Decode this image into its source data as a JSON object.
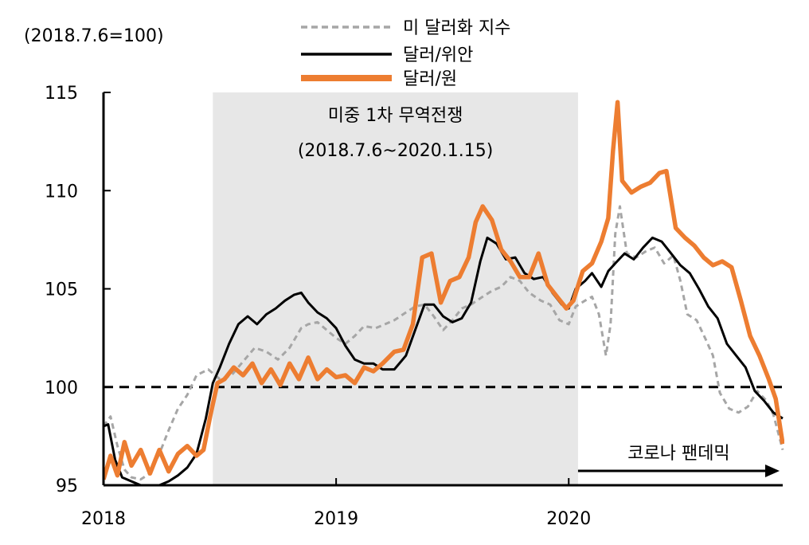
{
  "chart_data": {
    "type": "line",
    "index_note": "(2018.7.6=100)",
    "ylim": [
      95,
      115
    ],
    "yticks": [
      95,
      100,
      105,
      110,
      115
    ],
    "xlim": [
      2018.0,
      2020.92
    ],
    "xticks": [
      {
        "value": 2018.0,
        "label": "2018"
      },
      {
        "value": 2019.0,
        "label": "2019"
      },
      {
        "value": 2020.0,
        "label": "2020"
      }
    ],
    "reference_line": {
      "value": 100,
      "style": "dashed"
    },
    "shaded_region": {
      "start": 2018.47,
      "end": 2020.04,
      "label": "미중 1차 무역전쟁",
      "sublabel": "(2018.7.6~2020.1.15)"
    },
    "arrow_annotation": {
      "start": 2020.04,
      "end": 2020.92,
      "label": "코로나 팬데믹"
    },
    "legend_position": "top-center",
    "series": [
      {
        "name": "미 달러화 지수",
        "color": "#a6a6a6",
        "style": "dashed",
        "points": [
          [
            2018.0,
            98.0
          ],
          [
            2018.03,
            98.5
          ],
          [
            2018.06,
            97.0
          ],
          [
            2018.09,
            95.8
          ],
          [
            2018.12,
            95.4
          ],
          [
            2018.16,
            95.3
          ],
          [
            2018.2,
            95.6
          ],
          [
            2018.24,
            96.6
          ],
          [
            2018.28,
            97.8
          ],
          [
            2018.32,
            98.9
          ],
          [
            2018.36,
            99.6
          ],
          [
            2018.4,
            100.6
          ],
          [
            2018.45,
            100.9
          ],
          [
            2018.5,
            100.4
          ],
          [
            2018.55,
            100.6
          ],
          [
            2018.6,
            101.3
          ],
          [
            2018.65,
            102.0
          ],
          [
            2018.7,
            101.8
          ],
          [
            2018.75,
            101.4
          ],
          [
            2018.8,
            102.0
          ],
          [
            2018.85,
            103.0
          ],
          [
            2018.88,
            103.2
          ],
          [
            2018.92,
            103.3
          ],
          [
            2018.96,
            102.9
          ],
          [
            2019.0,
            102.5
          ],
          [
            2019.04,
            102.2
          ],
          [
            2019.08,
            102.6
          ],
          [
            2019.12,
            103.1
          ],
          [
            2019.17,
            103.0
          ],
          [
            2019.21,
            103.2
          ],
          [
            2019.25,
            103.4
          ],
          [
            2019.3,
            103.8
          ],
          [
            2019.34,
            104.1
          ],
          [
            2019.38,
            104.2
          ],
          [
            2019.42,
            103.6
          ],
          [
            2019.46,
            102.9
          ],
          [
            2019.5,
            103.4
          ],
          [
            2019.54,
            104.0
          ],
          [
            2019.58,
            104.2
          ],
          [
            2019.63,
            104.6
          ],
          [
            2019.67,
            104.9
          ],
          [
            2019.71,
            105.1
          ],
          [
            2019.75,
            105.6
          ],
          [
            2019.79,
            105.4
          ],
          [
            2019.83,
            104.8
          ],
          [
            2019.88,
            104.4
          ],
          [
            2019.92,
            104.2
          ],
          [
            2019.96,
            103.4
          ],
          [
            2020.0,
            103.2
          ],
          [
            2020.03,
            104.1
          ],
          [
            2020.07,
            104.4
          ],
          [
            2020.1,
            104.6
          ],
          [
            2020.13,
            103.7
          ],
          [
            2020.16,
            101.6
          ],
          [
            2020.18,
            103.2
          ],
          [
            2020.2,
            107.8
          ],
          [
            2020.22,
            109.2
          ],
          [
            2020.25,
            106.8
          ],
          [
            2020.29,
            106.6
          ],
          [
            2020.33,
            106.9
          ],
          [
            2020.37,
            107.1
          ],
          [
            2020.41,
            106.3
          ],
          [
            2020.45,
            106.7
          ],
          [
            2020.48,
            105.4
          ],
          [
            2020.51,
            103.7
          ],
          [
            2020.55,
            103.4
          ],
          [
            2020.59,
            102.4
          ],
          [
            2020.62,
            101.6
          ],
          [
            2020.65,
            99.7
          ],
          [
            2020.69,
            98.9
          ],
          [
            2020.73,
            98.7
          ],
          [
            2020.77,
            99.0
          ],
          [
            2020.81,
            99.8
          ],
          [
            2020.85,
            99.3
          ],
          [
            2020.88,
            98.6
          ],
          [
            2020.92,
            96.8
          ]
        ]
      },
      {
        "name": "달러/위안",
        "color": "#000000",
        "style": "solid",
        "points": [
          [
            2018.0,
            98.0
          ],
          [
            2018.02,
            98.1
          ],
          [
            2018.05,
            96.3
          ],
          [
            2018.08,
            95.4
          ],
          [
            2018.12,
            95.2
          ],
          [
            2018.16,
            95.0
          ],
          [
            2018.2,
            94.9
          ],
          [
            2018.24,
            95.0
          ],
          [
            2018.28,
            95.2
          ],
          [
            2018.32,
            95.5
          ],
          [
            2018.36,
            95.9
          ],
          [
            2018.4,
            96.6
          ],
          [
            2018.44,
            98.4
          ],
          [
            2018.47,
            100.2
          ],
          [
            2018.5,
            101.0
          ],
          [
            2018.54,
            102.2
          ],
          [
            2018.58,
            103.2
          ],
          [
            2018.62,
            103.6
          ],
          [
            2018.66,
            103.2
          ],
          [
            2018.7,
            103.7
          ],
          [
            2018.74,
            104.0
          ],
          [
            2018.78,
            104.4
          ],
          [
            2018.82,
            104.7
          ],
          [
            2018.85,
            104.8
          ],
          [
            2018.88,
            104.3
          ],
          [
            2018.92,
            103.8
          ],
          [
            2018.96,
            103.5
          ],
          [
            2019.0,
            103.0
          ],
          [
            2019.04,
            102.1
          ],
          [
            2019.08,
            101.4
          ],
          [
            2019.12,
            101.2
          ],
          [
            2019.16,
            101.2
          ],
          [
            2019.2,
            100.9
          ],
          [
            2019.25,
            100.9
          ],
          [
            2019.3,
            101.6
          ],
          [
            2019.34,
            102.9
          ],
          [
            2019.38,
            104.2
          ],
          [
            2019.42,
            104.2
          ],
          [
            2019.46,
            103.6
          ],
          [
            2019.5,
            103.3
          ],
          [
            2019.54,
            103.5
          ],
          [
            2019.58,
            104.3
          ],
          [
            2019.62,
            106.4
          ],
          [
            2019.65,
            107.6
          ],
          [
            2019.69,
            107.3
          ],
          [
            2019.73,
            106.5
          ],
          [
            2019.77,
            106.6
          ],
          [
            2019.81,
            105.8
          ],
          [
            2019.85,
            105.5
          ],
          [
            2019.89,
            105.6
          ],
          [
            2019.93,
            104.8
          ],
          [
            2019.97,
            104.2
          ],
          [
            2020.0,
            104.0
          ],
          [
            2020.03,
            105.0
          ],
          [
            2020.07,
            105.4
          ],
          [
            2020.1,
            105.8
          ],
          [
            2020.14,
            105.1
          ],
          [
            2020.17,
            105.9
          ],
          [
            2020.2,
            106.3
          ],
          [
            2020.24,
            106.8
          ],
          [
            2020.28,
            106.5
          ],
          [
            2020.32,
            107.1
          ],
          [
            2020.36,
            107.6
          ],
          [
            2020.4,
            107.4
          ],
          [
            2020.44,
            106.8
          ],
          [
            2020.48,
            106.2
          ],
          [
            2020.52,
            105.8
          ],
          [
            2020.56,
            105.0
          ],
          [
            2020.6,
            104.1
          ],
          [
            2020.64,
            103.5
          ],
          [
            2020.68,
            102.2
          ],
          [
            2020.72,
            101.6
          ],
          [
            2020.76,
            101.0
          ],
          [
            2020.8,
            99.8
          ],
          [
            2020.84,
            99.3
          ],
          [
            2020.88,
            98.7
          ],
          [
            2020.92,
            98.4
          ]
        ]
      },
      {
        "name": "달러/원",
        "color": "#ed7d31",
        "style": "solid",
        "points": [
          [
            2018.0,
            95.3
          ],
          [
            2018.03,
            96.5
          ],
          [
            2018.06,
            95.5
          ],
          [
            2018.09,
            97.2
          ],
          [
            2018.12,
            96.0
          ],
          [
            2018.16,
            96.8
          ],
          [
            2018.2,
            95.6
          ],
          [
            2018.24,
            96.8
          ],
          [
            2018.28,
            95.7
          ],
          [
            2018.32,
            96.6
          ],
          [
            2018.36,
            97.0
          ],
          [
            2018.4,
            96.5
          ],
          [
            2018.43,
            96.8
          ],
          [
            2018.46,
            98.6
          ],
          [
            2018.49,
            100.2
          ],
          [
            2018.52,
            100.4
          ],
          [
            2018.56,
            101.0
          ],
          [
            2018.6,
            100.6
          ],
          [
            2018.64,
            101.2
          ],
          [
            2018.68,
            100.2
          ],
          [
            2018.72,
            100.9
          ],
          [
            2018.76,
            100.1
          ],
          [
            2018.8,
            101.2
          ],
          [
            2018.84,
            100.4
          ],
          [
            2018.88,
            101.5
          ],
          [
            2018.92,
            100.4
          ],
          [
            2018.96,
            100.9
          ],
          [
            2019.0,
            100.5
          ],
          [
            2019.04,
            100.6
          ],
          [
            2019.08,
            100.2
          ],
          [
            2019.12,
            101.0
          ],
          [
            2019.16,
            100.8
          ],
          [
            2019.2,
            101.2
          ],
          [
            2019.25,
            101.8
          ],
          [
            2019.29,
            101.9
          ],
          [
            2019.33,
            103.2
          ],
          [
            2019.37,
            106.6
          ],
          [
            2019.41,
            106.8
          ],
          [
            2019.45,
            104.3
          ],
          [
            2019.49,
            105.4
          ],
          [
            2019.53,
            105.6
          ],
          [
            2019.57,
            106.6
          ],
          [
            2019.6,
            108.4
          ],
          [
            2019.63,
            109.2
          ],
          [
            2019.67,
            108.5
          ],
          [
            2019.71,
            107.0
          ],
          [
            2019.75,
            106.4
          ],
          [
            2019.79,
            105.6
          ],
          [
            2019.83,
            105.6
          ],
          [
            2019.87,
            106.8
          ],
          [
            2019.91,
            105.2
          ],
          [
            2019.95,
            104.6
          ],
          [
            2019.99,
            104.0
          ],
          [
            2020.02,
            104.4
          ],
          [
            2020.06,
            105.9
          ],
          [
            2020.1,
            106.3
          ],
          [
            2020.14,
            107.4
          ],
          [
            2020.17,
            108.6
          ],
          [
            2020.19,
            112.0
          ],
          [
            2020.21,
            114.5
          ],
          [
            2020.23,
            110.5
          ],
          [
            2020.27,
            109.9
          ],
          [
            2020.31,
            110.2
          ],
          [
            2020.35,
            110.4
          ],
          [
            2020.39,
            110.9
          ],
          [
            2020.42,
            111.0
          ],
          [
            2020.46,
            108.1
          ],
          [
            2020.5,
            107.6
          ],
          [
            2020.54,
            107.2
          ],
          [
            2020.58,
            106.6
          ],
          [
            2020.62,
            106.2
          ],
          [
            2020.66,
            106.4
          ],
          [
            2020.7,
            106.1
          ],
          [
            2020.74,
            104.4
          ],
          [
            2020.78,
            102.6
          ],
          [
            2020.82,
            101.6
          ],
          [
            2020.86,
            100.4
          ],
          [
            2020.89,
            99.4
          ],
          [
            2020.92,
            97.1
          ]
        ]
      }
    ]
  }
}
